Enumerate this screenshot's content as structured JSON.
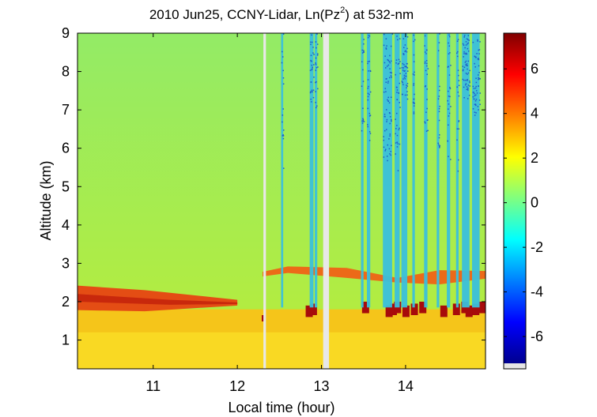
{
  "chart_data": {
    "type": "heatmap",
    "title": "2010 Jun25, CCNY-Lidar, Ln(Pz",
    "title_sup": "2",
    "title_end": ") at 532-nm",
    "xlabel": "Local time (hour)",
    "ylabel": "Altitude (km)",
    "xlim": [
      10.1,
      14.95
    ],
    "ylim": [
      0.25,
      9
    ],
    "xticks": [
      11,
      12,
      13,
      14
    ],
    "yticks": [
      1,
      2,
      3,
      4,
      5,
      6,
      7,
      8,
      9
    ],
    "colorbar": {
      "range": [
        -7.2,
        7.6
      ],
      "ticks": [
        -6,
        -4,
        -2,
        0,
        2,
        4,
        6
      ]
    },
    "background_value": 1.0,
    "features": [
      {
        "label": "boundary layer",
        "x_range": [
          10.1,
          14.95
        ],
        "y_range": [
          0.25,
          1.8
        ],
        "value": 3.0
      },
      {
        "label": "residual layer",
        "x_range": [
          10.1,
          12.0
        ],
        "y_range": [
          1.7,
          2.4
        ],
        "value": 4.5
      },
      {
        "label": "elevated layer",
        "x_range": [
          12.3,
          14.95
        ],
        "y_range": [
          2.55,
          2.9
        ],
        "value": 4.0
      },
      {
        "label": "cloud signal",
        "x_range": [
          12.8,
          14.9
        ],
        "y_range": [
          1.6,
          1.9
        ],
        "value": 7.0
      }
    ],
    "gaps": [
      {
        "x_range": [
          12.31,
          12.34
        ]
      },
      {
        "x_range": [
          13.02,
          13.09
        ]
      }
    ],
    "streaks": [
      [
        12.52,
        12.545
      ],
      [
        12.86,
        12.905
      ],
      [
        12.92,
        12.95
      ],
      [
        13.47,
        13.5
      ],
      [
        13.54,
        13.58
      ],
      [
        13.73,
        13.84
      ],
      [
        13.87,
        13.93
      ],
      [
        13.95,
        14.02
      ],
      [
        14.08,
        14.11
      ],
      [
        14.22,
        14.26
      ],
      [
        14.37,
        14.4
      ],
      [
        14.49,
        14.53
      ],
      [
        14.6,
        14.63
      ],
      [
        14.67,
        14.76
      ],
      [
        14.79,
        14.88
      ]
    ]
  },
  "colors": {
    "boundary_layer": "#f5c51a",
    "boundary_layer_bright": "#f9d923",
    "background_low": "#b9ec39",
    "background_high": "#93eb66",
    "residual_layer": "#e44d14",
    "elevated_layer": "#ec6a18",
    "cloud_signal": "#a70b0b",
    "streak": "#3ac0dc",
    "streak_dark": "#1d5cc6"
  }
}
